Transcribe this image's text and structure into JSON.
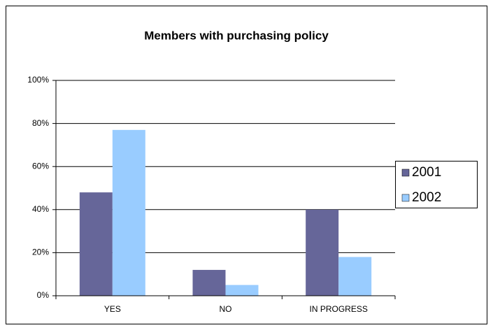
{
  "chart_data": {
    "type": "bar",
    "title": "Members with purchasing policy",
    "categories": [
      "YES",
      "NO",
      "IN PROGRESS"
    ],
    "series": [
      {
        "name": "2001",
        "color": "#666699",
        "values": [
          48,
          12,
          40
        ]
      },
      {
        "name": "2002",
        "color": "#99ccff",
        "values": [
          77,
          5,
          18
        ]
      }
    ],
    "ylim": [
      0,
      100
    ],
    "yticks": [
      {
        "value": 0,
        "label": "0%"
      },
      {
        "value": 20,
        "label": "20%"
      },
      {
        "value": 40,
        "label": "40%"
      },
      {
        "value": 60,
        "label": "60%"
      },
      {
        "value": 80,
        "label": "80%"
      },
      {
        "value": 100,
        "label": "100%"
      }
    ],
    "grid": true,
    "legend": "right"
  }
}
